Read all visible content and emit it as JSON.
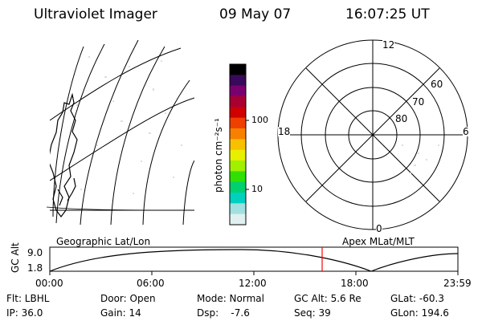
{
  "header": {
    "title": "Ultraviolet Imager",
    "date": "09 May 07",
    "time": "16:07:25 UT"
  },
  "colorbar": {
    "label": "photon cm⁻²s⁻¹",
    "tick_labels": [
      "100",
      "10"
    ],
    "colors": [
      "#000000",
      "#3a0a5a",
      "#7a0070",
      "#a80030",
      "#d00000",
      "#f04000",
      "#f88000",
      "#f8c000",
      "#e8f000",
      "#a0f000",
      "#30e000",
      "#00d070",
      "#00d0c0",
      "#a0e0e0",
      "#e0f0f0"
    ]
  },
  "polar_plot": {
    "clock_labels": {
      "top": "12",
      "left": "18",
      "right": "6",
      "bottom": "0"
    },
    "lat_labels": [
      "60",
      "70",
      "80"
    ]
  },
  "panel_labels": {
    "left": "Geographic Lat/Lon",
    "right": "Apex MLat/MLT"
  },
  "altitude_strip": {
    "axis_label": "GC Alt",
    "y_max_label": "9.0",
    "y_min_label": "1.8",
    "x_tick_labels": [
      "00:00",
      "06:00",
      "12:00",
      "18:00",
      "23:59"
    ],
    "marker_color": "#ff0000"
  },
  "status": {
    "filter": "Flt: LBHL",
    "door": "Door: Open",
    "mode": "Mode: Normal",
    "gc_alt": "GC Alt: 5.6 Re",
    "glat": "GLat: -60.3",
    "ip": "IP: 36.0",
    "gain": "Gain: 14",
    "dsp": "Dsp:    -7.6",
    "seq": "Seq: 39",
    "glon": "GLon: 194.6"
  }
}
